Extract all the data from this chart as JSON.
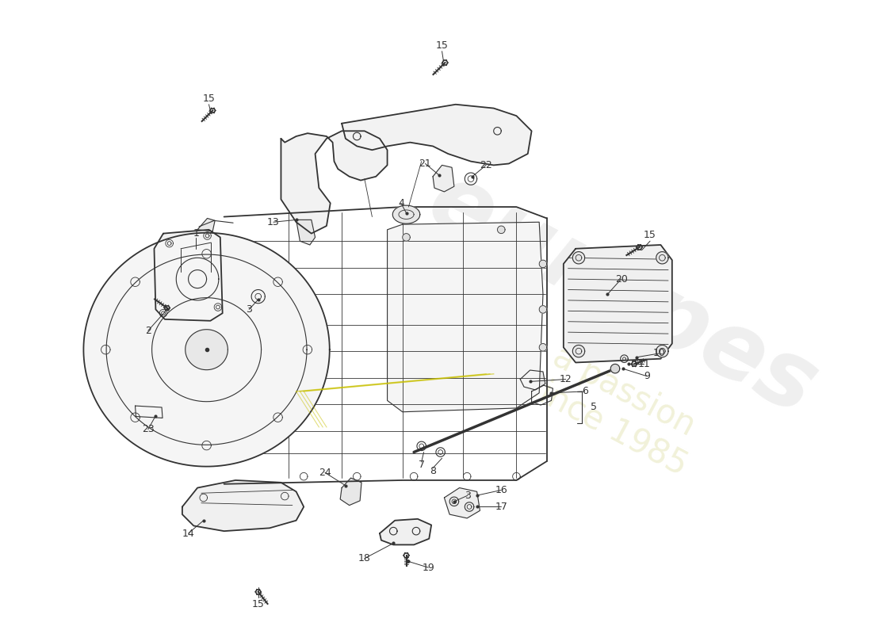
{
  "bg_color": "#ffffff",
  "line_color": "#333333",
  "fig_width": 11.0,
  "fig_height": 8.0,
  "dpi": 100,
  "watermark1": "europes",
  "watermark2": "a passion since 1985"
}
